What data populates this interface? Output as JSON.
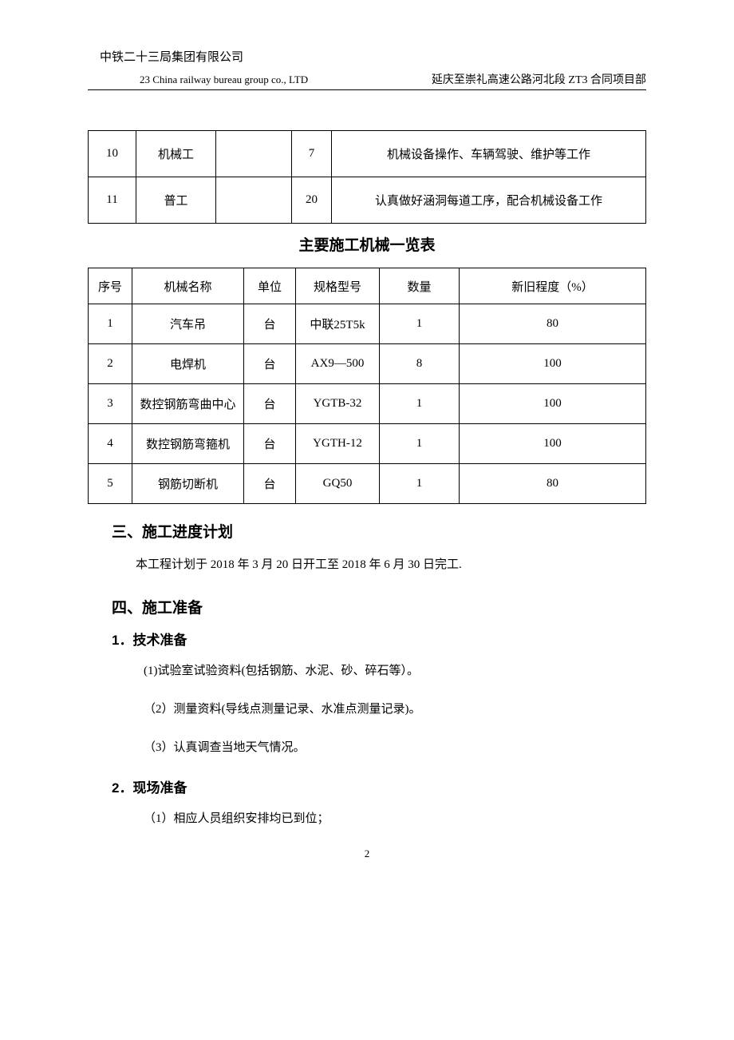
{
  "header": {
    "company": "中铁二十三局集团有限公司",
    "company_en": "23 China railway bureau group co., LTD",
    "project": "延庆至崇礼高速公路河北段 ZT3 合同项目部"
  },
  "table1": {
    "rows": [
      {
        "no": "10",
        "role": "机械工",
        "blank": "",
        "count": "7",
        "desc": "机械设备操作、车辆驾驶、维护等工作"
      },
      {
        "no": "11",
        "role": "普工",
        "blank": "",
        "count": "20",
        "desc": "认真做好涵洞每道工序，配合机械设备工作"
      }
    ]
  },
  "table2": {
    "title": "主要施工机械一览表",
    "headers": [
      "序号",
      "机械名称",
      "单位",
      "规格型号",
      "数量",
      "新旧程度（%）"
    ],
    "rows": [
      {
        "no": "1",
        "name": "汽车吊",
        "unit": "台",
        "model": "中联25T5k",
        "qty": "1",
        "cond": "80"
      },
      {
        "no": "2",
        "name": "电焊机",
        "unit": "台",
        "model": "AX9—500",
        "qty": "8",
        "cond": "100"
      },
      {
        "no": "3",
        "name": "数控钢筋弯曲中心",
        "unit": "台",
        "model": "YGTB-32",
        "qty": "1",
        "cond": "100"
      },
      {
        "no": "4",
        "name": "数控钢筋弯箍机",
        "unit": "台",
        "model": "YGTH-12",
        "qty": "1",
        "cond": "100"
      },
      {
        "no": "5",
        "name": "钢筋切断机",
        "unit": "台",
        "model": "GQ50",
        "qty": "1",
        "cond": "80"
      }
    ]
  },
  "section3": {
    "heading": "三、施工进度计划",
    "body": "本工程计划于 2018 年 3 月 20 日开工至 2018 年 6 月 30 日完工."
  },
  "section4": {
    "heading": "四、施工准备",
    "sub1": {
      "heading": "1．技术准备",
      "items": [
        "(1)试验室试验资料(包括钢筋、水泥、砂、碎石等）。",
        "（2）测量资料(导线点测量记录、水准点测量记录)。",
        "（3）认真调查当地天气情况。"
      ]
    },
    "sub2": {
      "heading": "2．现场准备",
      "items": [
        "（1）相应人员组织安排均已到位；"
      ]
    }
  },
  "page_number": "2"
}
